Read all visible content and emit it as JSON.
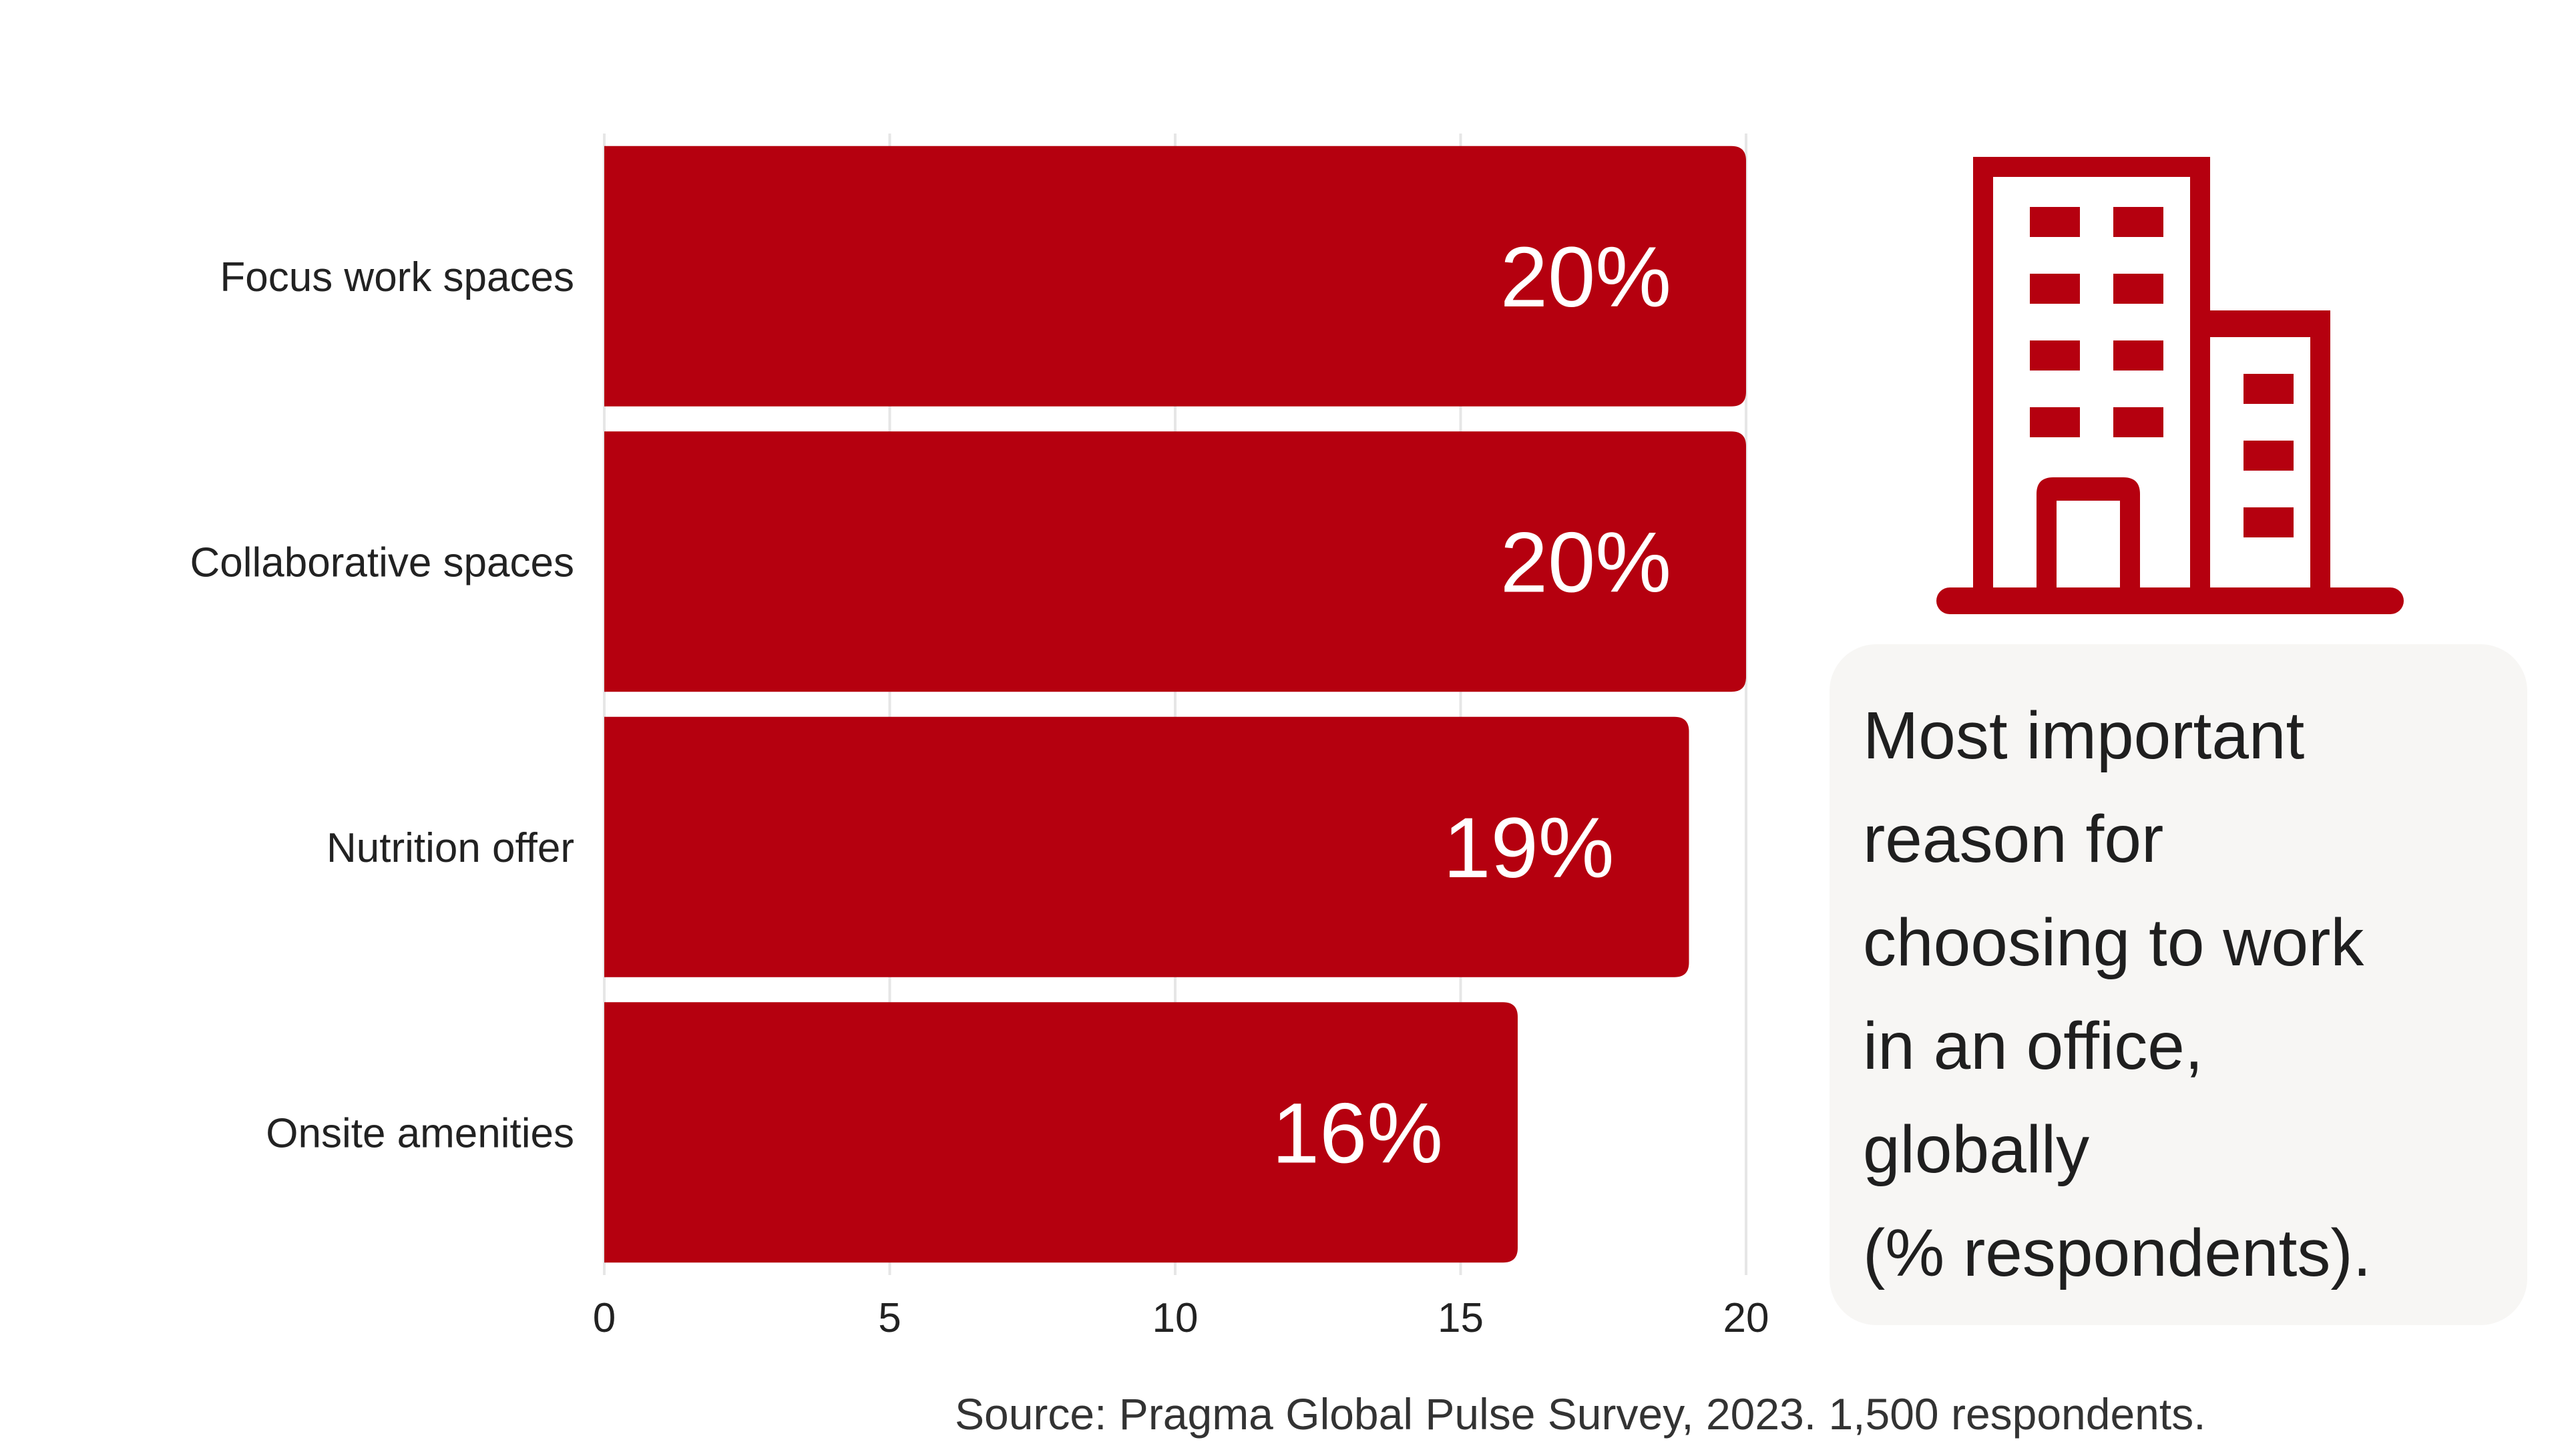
{
  "chart_data": {
    "type": "bar",
    "orientation": "horizontal",
    "categories": [
      "Focus work spaces",
      "Collaborative spaces",
      "Nutrition offer",
      "Onsite amenities"
    ],
    "values": [
      20,
      20,
      19,
      16
    ],
    "data_labels": [
      "20%",
      "20%",
      "19%",
      "16%"
    ],
    "xlim": [
      0,
      20
    ],
    "xticks": [
      "0",
      "5",
      "10",
      "15",
      "20"
    ],
    "grid": "vertical",
    "bar_color": "#b5000f"
  },
  "caption": {
    "text": "Most important\nreason for\nchoosing to work\nin an office,\nglobally\n(% respondents)."
  },
  "source": "Source: Pragma Global Pulse Survey, 2023. 1,500 respondents.",
  "icon": {
    "name": "office-building-icon",
    "color": "#b5000f"
  }
}
